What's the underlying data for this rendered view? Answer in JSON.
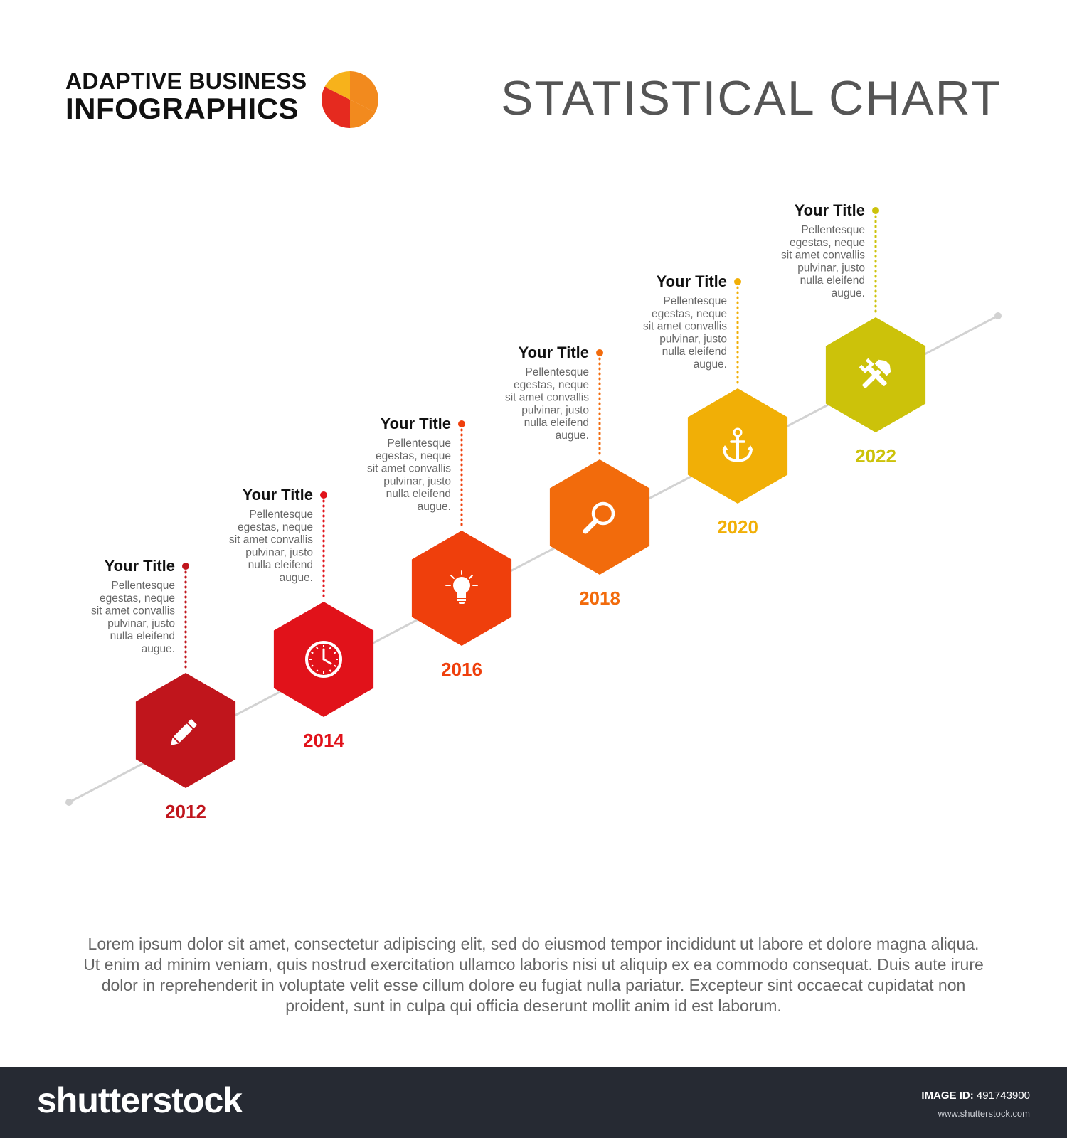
{
  "header": {
    "brand_line1": "ADAPTIVE BUSINESS",
    "brand_line2": "INFOGRAPHICS",
    "title": "STATISTICAL CHART",
    "logo_colors": [
      "#e52a1f",
      "#f28a1e",
      "#f7b21b"
    ]
  },
  "timeline": {
    "line_color": "#d2d2d2",
    "steps": [
      {
        "year": "2012",
        "title": "Your Title",
        "icon": "pencil-icon",
        "color": "#c0151c",
        "desc": [
          "Pellentesque",
          "egestas, neque",
          "sit amet convallis",
          "pulvinar, justo",
          "nulla eleifend",
          "augue."
        ]
      },
      {
        "year": "2014",
        "title": "Your Title",
        "icon": "clock-icon",
        "color": "#e1121a",
        "desc": [
          "Pellentesque",
          "egestas, neque",
          "sit amet convallis",
          "pulvinar, justo",
          "nulla eleifend",
          "augue."
        ]
      },
      {
        "year": "2016",
        "title": "Your Title",
        "icon": "lightbulb-icon",
        "color": "#ef3f0c",
        "desc": [
          "Pellentesque",
          "egestas, neque",
          "sit amet convallis",
          "pulvinar, justo",
          "nulla eleifend",
          "augue."
        ]
      },
      {
        "year": "2018",
        "title": "Your Title",
        "icon": "magnifier-icon",
        "color": "#f26b0c",
        "desc": [
          "Pellentesque",
          "egestas, neque",
          "sit amet convallis",
          "pulvinar, justo",
          "nulla eleifend",
          "augue."
        ]
      },
      {
        "year": "2020",
        "title": "Your Title",
        "icon": "anchor-icon",
        "color": "#f1af06",
        "desc": [
          "Pellentesque",
          "egestas, neque",
          "sit amet convallis",
          "pulvinar, justo",
          "nulla eleifend",
          "augue."
        ]
      },
      {
        "year": "2022",
        "title": "Your Title",
        "icon": "tools-icon",
        "color": "#ccc20a",
        "desc": [
          "Pellentesque",
          "egestas, neque",
          "sit amet convallis",
          "pulvinar, justo",
          "nulla eleifend",
          "augue."
        ]
      }
    ]
  },
  "footer": {
    "text": "Lorem ipsum dolor sit amet, consectetur adipiscing elit, sed do eiusmod tempor incididunt ut labore et dolore magna aliqua. Ut enim ad minim veniam, quis nostrud exercitation ullamco laboris nisi ut aliquip ex ea commodo consequat. Duis aute irure dolor in reprehenderit in voluptate velit esse cillum dolore eu fugiat nulla pariatur. Excepteur sint occaecat cupidatat non proident, sunt in culpa qui officia deserunt mollit anim id est laborum."
  },
  "bottom_bar": {
    "logo": "shutterstock",
    "id_label": "IMAGE ID:",
    "id_value": "491743900",
    "site": "www.shutterstock.com"
  }
}
